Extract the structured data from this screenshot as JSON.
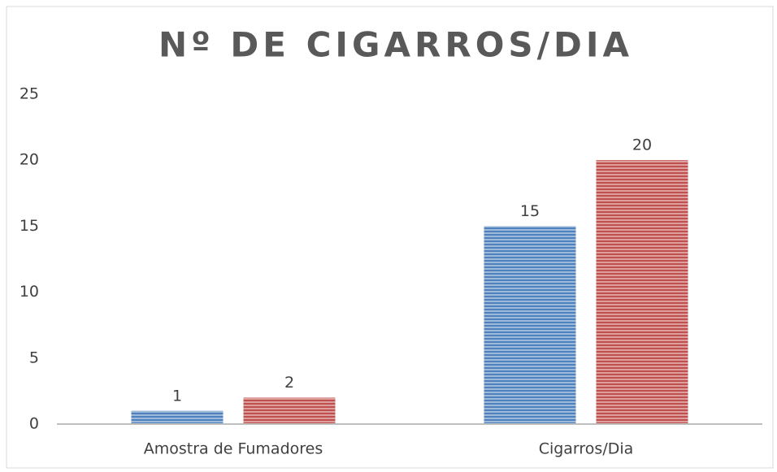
{
  "chart_data": {
    "type": "bar",
    "title": "Nº DE CIGARROS/DIA",
    "categories": [
      "Amostra de Fumadores",
      "Cigarros/Dia"
    ],
    "series": [
      {
        "color": "#4f81bd",
        "values": [
          1,
          15
        ]
      },
      {
        "color": "#c0504d",
        "values": [
          2,
          20
        ]
      }
    ],
    "ylim": [
      0,
      25
    ],
    "yticks": [
      0,
      5,
      10,
      15,
      20,
      25
    ],
    "grid": false
  }
}
